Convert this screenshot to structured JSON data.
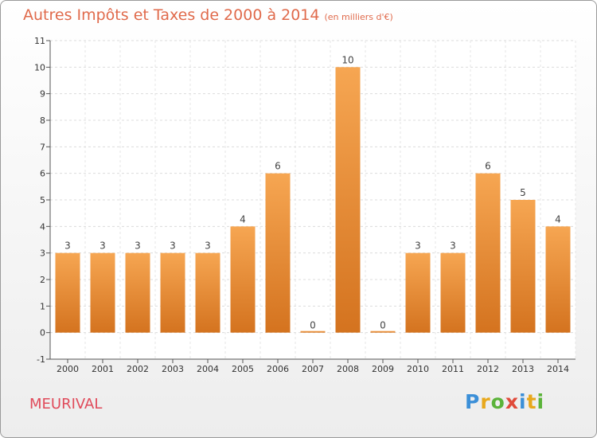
{
  "header": {
    "title": "Autres Impôts et Taxes de 2000 à 2014",
    "unit": "(en milliers d'€)"
  },
  "footer": {
    "commune": "MEURIVAL",
    "logo_text": "Proxiti"
  },
  "colors": {
    "bar_top": "#f6a652",
    "bar_bottom": "#d4731f",
    "title": "#e06a4b",
    "commune": "#e04a5a",
    "logo_letters": [
      "#3b8fd8",
      "#e8a81c",
      "#5bb33a",
      "#e04a3a",
      "#3b8fd8",
      "#e8a81c",
      "#5bb33a"
    ]
  },
  "chart_data": {
    "type": "bar",
    "categories": [
      "2000",
      "2001",
      "2002",
      "2003",
      "2004",
      "2005",
      "2006",
      "2007",
      "2008",
      "2009",
      "2010",
      "2011",
      "2012",
      "2013",
      "2014"
    ],
    "values": [
      3,
      3,
      3,
      3,
      3,
      4,
      6,
      0,
      10,
      0,
      3,
      3,
      6,
      5,
      4
    ],
    "value_labels": [
      "3",
      "3",
      "3",
      "3",
      "3",
      "4",
      "6",
      "0",
      "10",
      "0",
      "3",
      "3",
      "6",
      "5",
      "4"
    ],
    "ylim": [
      -1,
      11
    ],
    "yticks": [
      "-1",
      "0",
      "1",
      "2",
      "3",
      "4",
      "5",
      "6",
      "7",
      "8",
      "9",
      "10",
      "11"
    ],
    "grid": true
  }
}
